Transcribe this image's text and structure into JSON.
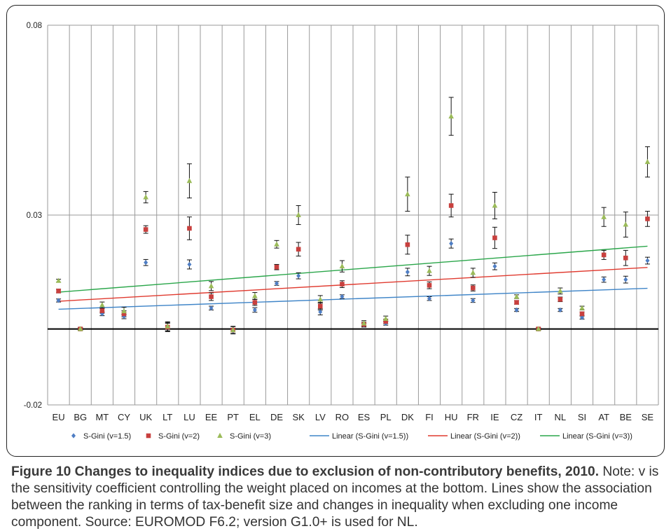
{
  "caption": {
    "figure_label": "Figure 10 Changes to inequality indices due to exclusion of non-contributory benefits, 2010.",
    "note": " Note: v is the sensitivity coefficient controlling the weight placed on incomes at the bottom. Lines show the association between the ranking in terms of tax-benefit size and changes in inequality when excluding one income component. Source: EUROMOD F6.2; version G1.0+ is used for NL."
  },
  "colors": {
    "v15": "#4f7ec4",
    "v2": "#c8403e",
    "v3": "#9bbb59",
    "lin15": "#3f85c8",
    "lin2": "#e03a2f",
    "lin3": "#2aa64a",
    "error_bar": "#111111",
    "grid": "#9a9a9a",
    "zero_line": "#000000"
  },
  "chart_data": {
    "type": "scatter",
    "title": "",
    "xlabel": "",
    "ylabel": "",
    "ylim": [
      -0.02,
      0.08
    ],
    "yticks": [
      -0.02,
      0.03,
      0.08
    ],
    "ytick_labels": [
      "-0.02",
      "0.03",
      "0.08"
    ],
    "grid": true,
    "legend_position": "bottom",
    "categories": [
      "EU",
      "BG",
      "MT",
      "CY",
      "UK",
      "LT",
      "LU",
      "EE",
      "PT",
      "EL",
      "DE",
      "SK",
      "LV",
      "RO",
      "ES",
      "PL",
      "DK",
      "FI",
      "HU",
      "FR",
      "IE",
      "CZ",
      "IT",
      "NL",
      "SI",
      "AT",
      "BE",
      "SE"
    ],
    "series": [
      {
        "name": "S-Gini (v=1.5)",
        "key": "v15",
        "marker": "diamond",
        "values": [
          0.0075,
          0.0,
          0.004,
          0.0033,
          0.0175,
          0.0005,
          0.017,
          0.0055,
          -0.0005,
          0.005,
          0.012,
          0.014,
          0.0045,
          0.0085,
          0.001,
          0.0015,
          0.015,
          0.008,
          0.0225,
          0.0075,
          0.0165,
          0.005,
          0.0,
          0.005,
          0.003,
          0.013,
          0.013,
          0.018
        ],
        "err": [
          0.0004,
          0.0003,
          0.0005,
          0.0006,
          0.0008,
          0.001,
          0.0012,
          0.0005,
          0.0007,
          0.0006,
          0.0005,
          0.0008,
          0.0008,
          0.0005,
          0.0005,
          0.0005,
          0.001,
          0.0005,
          0.0012,
          0.0005,
          0.0009,
          0.0004,
          0.0003,
          0.0004,
          0.0004,
          0.0007,
          0.0009,
          0.0009
        ]
      },
      {
        "name": "S-Gini (v=2)",
        "key": "v2",
        "marker": "square",
        "values": [
          0.01,
          0.0,
          0.0048,
          0.004,
          0.0262,
          0.0005,
          0.0265,
          0.0085,
          -0.0003,
          0.007,
          0.0163,
          0.021,
          0.006,
          0.0118,
          0.0012,
          0.002,
          0.0222,
          0.0115,
          0.0325,
          0.0108,
          0.024,
          0.007,
          0.0,
          0.0078,
          0.004,
          0.0195,
          0.0187,
          0.029
        ],
        "err": [
          0.0005,
          0.0003,
          0.0006,
          0.0008,
          0.001,
          0.0012,
          0.003,
          0.001,
          0.0009,
          0.0008,
          0.0007,
          0.0018,
          0.001,
          0.0009,
          0.0006,
          0.0006,
          0.0025,
          0.0009,
          0.003,
          0.0008,
          0.0028,
          0.0005,
          0.0003,
          0.0006,
          0.0005,
          0.0012,
          0.002,
          0.002
        ]
      },
      {
        "name": "S-Gini (v=3)",
        "key": "v3",
        "marker": "triangle",
        "values": [
          0.0127,
          0.0,
          0.0063,
          0.0047,
          0.0347,
          0.0007,
          0.039,
          0.0113,
          -0.0003,
          0.0087,
          0.0223,
          0.03,
          0.0078,
          0.0165,
          0.0015,
          0.0027,
          0.0355,
          0.0153,
          0.056,
          0.0148,
          0.0325,
          0.0085,
          0.0,
          0.01,
          0.0055,
          0.0295,
          0.0275,
          0.044
        ],
        "err": [
          0.0004,
          0.0004,
          0.0008,
          0.001,
          0.0015,
          0.0012,
          0.0045,
          0.0012,
          0.001,
          0.0009,
          0.001,
          0.0025,
          0.001,
          0.0015,
          0.0007,
          0.0007,
          0.0045,
          0.0012,
          0.005,
          0.0012,
          0.0035,
          0.0005,
          0.0003,
          0.0008,
          0.0005,
          0.0025,
          0.0033,
          0.004
        ]
      }
    ],
    "trendlines": [
      {
        "name": "Linear (S-Gini (v=1.5))",
        "key": "lin15",
        "start": 0.0052,
        "end": 0.0107
      },
      {
        "name": "Linear (S-Gini (v=2))",
        "key": "lin2",
        "start": 0.0073,
        "end": 0.0162
      },
      {
        "name": "Linear (S-Gini (v=3))",
        "key": "lin3",
        "start": 0.0097,
        "end": 0.0218
      }
    ]
  }
}
